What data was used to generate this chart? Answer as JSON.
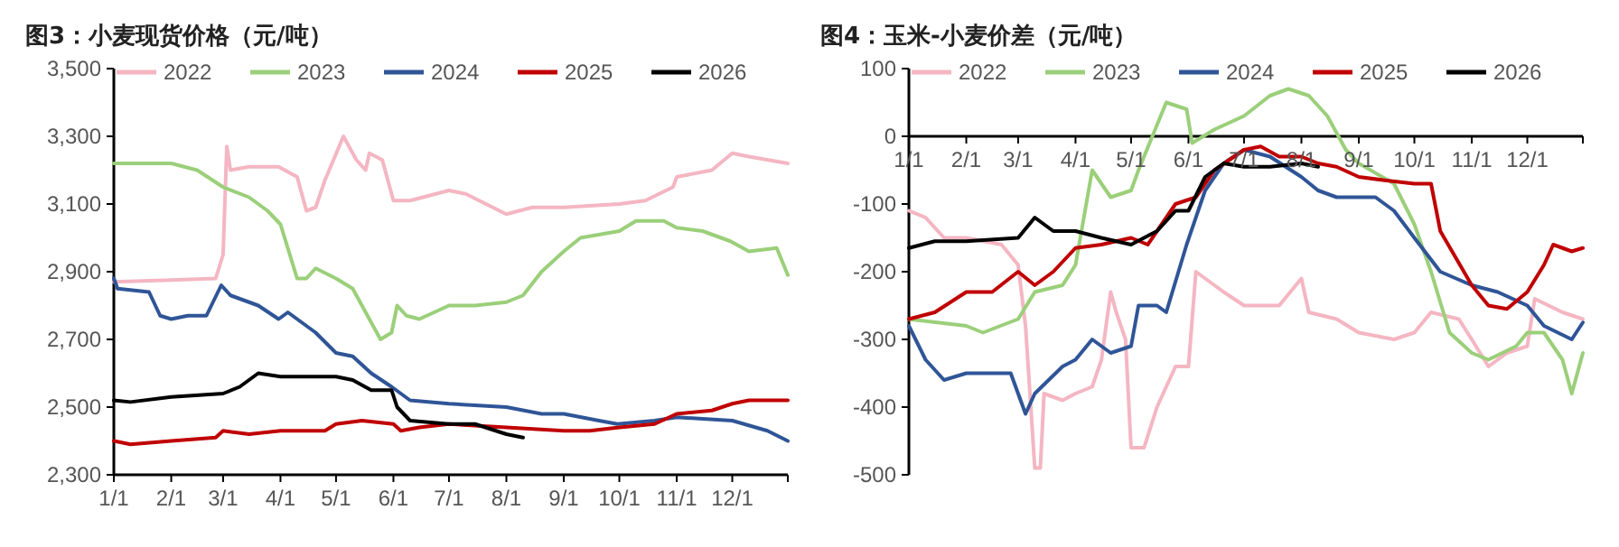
{
  "chart_data": [
    {
      "type": "line",
      "title": "图3：小麦现货价格（元/吨）",
      "xlim": [
        "--01-01",
        "--12-31"
      ],
      "xticks": [
        {
          "value": "--01-01",
          "label": "1/1"
        },
        {
          "value": "--02-01",
          "label": "2/1"
        },
        {
          "value": "--03-01",
          "label": "3/1"
        },
        {
          "value": "--04-01",
          "label": "4/1"
        },
        {
          "value": "--05-01",
          "label": "5/1"
        },
        {
          "value": "--06-01",
          "label": "6/1"
        },
        {
          "value": "--07-01",
          "label": "7/1"
        },
        {
          "value": "--08-01",
          "label": "8/1"
        },
        {
          "value": "--09-01",
          "label": "9/1"
        },
        {
          "value": "--10-01",
          "label": "10/1"
        },
        {
          "value": "--11-01",
          "label": "11/1"
        },
        {
          "value": "--12-01",
          "label": "12/1"
        }
      ],
      "ylim": [
        2300,
        3500
      ],
      "yticks": [
        {
          "value": 2300,
          "label": "2,300"
        },
        {
          "value": 2500,
          "label": "2,500"
        },
        {
          "value": 2700,
          "label": "2,700"
        },
        {
          "value": 2900,
          "label": "2,900"
        },
        {
          "value": 3100,
          "label": "3,100"
        },
        {
          "value": 3300,
          "label": "3,300"
        },
        {
          "value": 3500,
          "label": "3,500"
        }
      ],
      "grid": false,
      "legend": "top",
      "marker": "none",
      "line_style": "solid",
      "series": [
        {
          "name": "2022",
          "color": "#f4b6c2",
          "x": [
            "--01-01",
            "--02-01",
            "--02-25",
            "--03-01",
            "--03-03",
            "--03-05",
            "--03-15",
            "--03-31",
            "--04-10",
            "--04-15",
            "--04-20",
            "--04-25",
            "--05-05",
            "--05-12",
            "--05-17",
            "--05-19",
            "--05-26",
            "--06-01",
            "--06-10",
            "--07-01",
            "--07-10",
            "--08-01",
            "--08-15",
            "--09-01",
            "--10-01",
            "--10-15",
            "--10-30",
            "--11-01",
            "--11-20",
            "--12-01",
            "--12-10",
            "--12-31"
          ],
          "values": [
            2870,
            2875,
            2880,
            2950,
            3270,
            3200,
            3210,
            3210,
            3180,
            3080,
            3090,
            3170,
            3300,
            3230,
            3200,
            3250,
            3230,
            3110,
            3110,
            3140,
            3130,
            3070,
            3090,
            3090,
            3100,
            3110,
            3150,
            3180,
            3200,
            3250,
            3240,
            3220
          ]
        },
        {
          "name": "2023",
          "color": "#9bcf7a",
          "x": [
            "--01-01",
            "--02-01",
            "--02-15",
            "--03-01",
            "--03-15",
            "--03-25",
            "--04-01",
            "--04-10",
            "--04-15",
            "--04-20",
            "--05-01",
            "--05-10",
            "--05-20",
            "--05-25",
            "--05-31",
            "--06-03",
            "--06-08",
            "--06-15",
            "--07-01",
            "--07-15",
            "--08-01",
            "--08-10",
            "--08-20",
            "--09-01",
            "--09-10",
            "--10-01",
            "--10-10",
            "--10-25",
            "--11-01",
            "--11-15",
            "--11-30",
            "--12-10",
            "--12-25",
            "--12-31"
          ],
          "values": [
            3220,
            3220,
            3200,
            3150,
            3120,
            3080,
            3040,
            2880,
            2880,
            2910,
            2880,
            2850,
            2750,
            2700,
            2720,
            2800,
            2770,
            2760,
            2800,
            2800,
            2810,
            2830,
            2900,
            2960,
            3000,
            3020,
            3050,
            3050,
            3030,
            3020,
            2990,
            2960,
            2970,
            2890
          ]
        },
        {
          "name": "2024",
          "color": "#2f5597",
          "x": [
            "--01-01",
            "--01-03",
            "--01-20",
            "--01-26",
            "--02-01",
            "--02-10",
            "--02-20",
            "--02-28",
            "--03-05",
            "--03-20",
            "--03-31",
            "--04-05",
            "--04-10",
            "--04-20",
            "--05-01",
            "--05-10",
            "--05-20",
            "--05-31",
            "--06-10",
            "--07-01",
            "--08-01",
            "--08-20",
            "--09-01",
            "--09-20",
            "--09-30",
            "--10-20",
            "--11-01",
            "--12-01",
            "--12-20",
            "--12-31"
          ],
          "values": [
            2880,
            2850,
            2840,
            2770,
            2760,
            2770,
            2770,
            2860,
            2830,
            2800,
            2760,
            2780,
            2760,
            2720,
            2660,
            2650,
            2600,
            2560,
            2520,
            2510,
            2500,
            2480,
            2480,
            2460,
            2450,
            2460,
            2470,
            2460,
            2430,
            2400
          ]
        },
        {
          "name": "2025",
          "color": "#c00000",
          "x": [
            "--01-01",
            "--01-10",
            "--02-01",
            "--02-25",
            "--03-01",
            "--03-15",
            "--04-01",
            "--04-25",
            "--05-01",
            "--05-15",
            "--06-01",
            "--06-05",
            "--06-15",
            "--07-01",
            "--08-01",
            "--09-01",
            "--09-15",
            "--10-01",
            "--10-20",
            "--11-01",
            "--11-20",
            "--12-01",
            "--12-10",
            "--12-31"
          ],
          "values": [
            2400,
            2390,
            2400,
            2410,
            2430,
            2420,
            2430,
            2430,
            2450,
            2460,
            2450,
            2430,
            2440,
            2450,
            2440,
            2430,
            2430,
            2440,
            2450,
            2480,
            2490,
            2510,
            2520,
            2520
          ]
        },
        {
          "name": "2026",
          "color": "#000000",
          "x": [
            "--01-01",
            "--01-10",
            "--02-01",
            "--03-01",
            "--03-10",
            "--03-20",
            "--04-01",
            "--05-01",
            "--05-10",
            "--05-20",
            "--05-31",
            "--06-03",
            "--06-10",
            "--07-01",
            "--07-15",
            "--08-01",
            "--08-10"
          ],
          "values": [
            2520,
            2515,
            2530,
            2540,
            2560,
            2600,
            2590,
            2590,
            2580,
            2550,
            2550,
            2500,
            2460,
            2450,
            2450,
            2420,
            2410
          ]
        }
      ]
    },
    {
      "type": "line",
      "title": "图4：玉米-小麦价差（元/吨）",
      "xlim": [
        "--01-01",
        "--12-31"
      ],
      "xticks": [
        {
          "value": "--01-01",
          "label": "1/1"
        },
        {
          "value": "--02-01",
          "label": "2/1"
        },
        {
          "value": "--03-01",
          "label": "3/1"
        },
        {
          "value": "--04-01",
          "label": "4/1"
        },
        {
          "value": "--05-01",
          "label": "5/1"
        },
        {
          "value": "--06-01",
          "label": "6/1"
        },
        {
          "value": "--07-01",
          "label": "7/1"
        },
        {
          "value": "--08-01",
          "label": "8/1"
        },
        {
          "value": "--09-01",
          "label": "9/1"
        },
        {
          "value": "--10-01",
          "label": "10/1"
        },
        {
          "value": "--11-01",
          "label": "11/1"
        },
        {
          "value": "--12-01",
          "label": "12/1"
        }
      ],
      "ylim": [
        -500,
        100
      ],
      "yticks": [
        -500,
        -400,
        -300,
        -200,
        -100,
        0,
        100
      ],
      "grid": false,
      "legend": "top",
      "marker": "none",
      "line_style": "solid",
      "series": [
        {
          "name": "2022",
          "color": "#f4b6c2",
          "x": [
            "--01-01",
            "--01-10",
            "--01-20",
            "--02-01",
            "--02-20",
            "--03-01",
            "--03-05",
            "--03-10",
            "--03-13",
            "--03-15",
            "--03-25",
            "--04-01",
            "--04-10",
            "--04-15",
            "--04-20",
            "--04-23",
            "--04-28",
            "--05-01",
            "--05-08",
            "--05-15",
            "--05-25",
            "--06-01",
            "--06-05",
            "--06-20",
            "--07-01",
            "--07-20",
            "--08-01",
            "--08-05",
            "--08-20",
            "--09-01",
            "--09-20",
            "--10-01",
            "--10-10",
            "--10-25",
            "--11-01",
            "--11-10",
            "--11-20",
            "--12-01",
            "--12-05",
            "--12-20",
            "--12-31"
          ],
          "values": [
            -110,
            -120,
            -150,
            -150,
            -160,
            -190,
            -280,
            -490,
            -490,
            -380,
            -390,
            -380,
            -370,
            -330,
            -230,
            -260,
            -300,
            -460,
            -460,
            -400,
            -340,
            -340,
            -200,
            -230,
            -250,
            -250,
            -210,
            -260,
            -270,
            -290,
            -300,
            -290,
            -260,
            -270,
            -300,
            -340,
            -320,
            -310,
            -240,
            -260,
            -270
          ]
        },
        {
          "name": "2023",
          "color": "#9bcf7a",
          "x": [
            "--01-01",
            "--02-01",
            "--02-10",
            "--03-01",
            "--03-10",
            "--03-25",
            "--04-01",
            "--04-10",
            "--04-20",
            "--05-01",
            "--05-05",
            "--05-20",
            "--05-31",
            "--06-03",
            "--06-15",
            "--07-01",
            "--07-15",
            "--07-25",
            "--08-05",
            "--08-15",
            "--08-25",
            "--09-01",
            "--09-20",
            "--10-01",
            "--10-10",
            "--10-20",
            "--11-01",
            "--11-10",
            "--11-25",
            "--12-01",
            "--12-10",
            "--12-20",
            "--12-25",
            "--12-31"
          ],
          "values": [
            -270,
            -280,
            -290,
            -270,
            -230,
            -220,
            -190,
            -50,
            -90,
            -80,
            -50,
            50,
            40,
            -10,
            10,
            30,
            60,
            70,
            60,
            30,
            -20,
            -40,
            -70,
            -130,
            -200,
            -290,
            -320,
            -330,
            -310,
            -290,
            -290,
            -330,
            -380,
            -320
          ]
        },
        {
          "name": "2024",
          "color": "#2f5597",
          "x": [
            "--01-01",
            "--01-10",
            "--01-20",
            "--02-01",
            "--02-25",
            "--03-05",
            "--03-10",
            "--03-25",
            "--04-01",
            "--04-10",
            "--04-20",
            "--05-01",
            "--05-05",
            "--05-15",
            "--05-20",
            "--05-31",
            "--06-10",
            "--06-20",
            "--07-01",
            "--07-15",
            "--08-01",
            "--08-10",
            "--08-20",
            "--09-10",
            "--09-20",
            "--10-01",
            "--10-15",
            "--11-01",
            "--11-15",
            "--12-01",
            "--12-10",
            "--12-25",
            "--12-31"
          ],
          "values": [
            -280,
            -330,
            -360,
            -350,
            -350,
            -410,
            -380,
            -340,
            -330,
            -300,
            -320,
            -310,
            -250,
            -250,
            -260,
            -160,
            -80,
            -40,
            -20,
            -30,
            -60,
            -80,
            -90,
            -90,
            -110,
            -150,
            -200,
            -220,
            -230,
            -250,
            -280,
            -300,
            -275
          ]
        },
        {
          "name": "2025",
          "color": "#c00000",
          "x": [
            "--01-01",
            "--01-15",
            "--02-01",
            "--02-15",
            "--03-01",
            "--03-10",
            "--03-20",
            "--04-01",
            "--04-15",
            "--05-01",
            "--05-10",
            "--05-15",
            "--05-25",
            "--06-05",
            "--06-15",
            "--07-01",
            "--07-10",
            "--07-20",
            "--08-01",
            "--08-10",
            "--08-20",
            "--09-01",
            "--09-15",
            "--10-01",
            "--10-10",
            "--10-15",
            "--11-01",
            "--11-10",
            "--11-20",
            "--12-01",
            "--12-10",
            "--12-15",
            "--12-25",
            "--12-31"
          ],
          "values": [
            -270,
            -260,
            -230,
            -230,
            -200,
            -220,
            -200,
            -165,
            -160,
            -150,
            -160,
            -140,
            -100,
            -90,
            -50,
            -20,
            -15,
            -30,
            -30,
            -40,
            -45,
            -60,
            -65,
            -70,
            -70,
            -140,
            -220,
            -250,
            -255,
            -230,
            -190,
            -160,
            -170,
            -165
          ]
        },
        {
          "name": "2026",
          "color": "#000000",
          "x": [
            "--01-01",
            "--01-15",
            "--02-01",
            "--03-01",
            "--03-10",
            "--03-20",
            "--04-01",
            "--04-15",
            "--05-01",
            "--05-15",
            "--05-25",
            "--06-01",
            "--06-10",
            "--06-20",
            "--07-01",
            "--07-15",
            "--08-01",
            "--08-10"
          ],
          "values": [
            -165,
            -155,
            -155,
            -150,
            -120,
            -140,
            -140,
            -150,
            -160,
            -140,
            -110,
            -110,
            -60,
            -40,
            -45,
            -45,
            -40,
            -45
          ]
        }
      ]
    }
  ]
}
